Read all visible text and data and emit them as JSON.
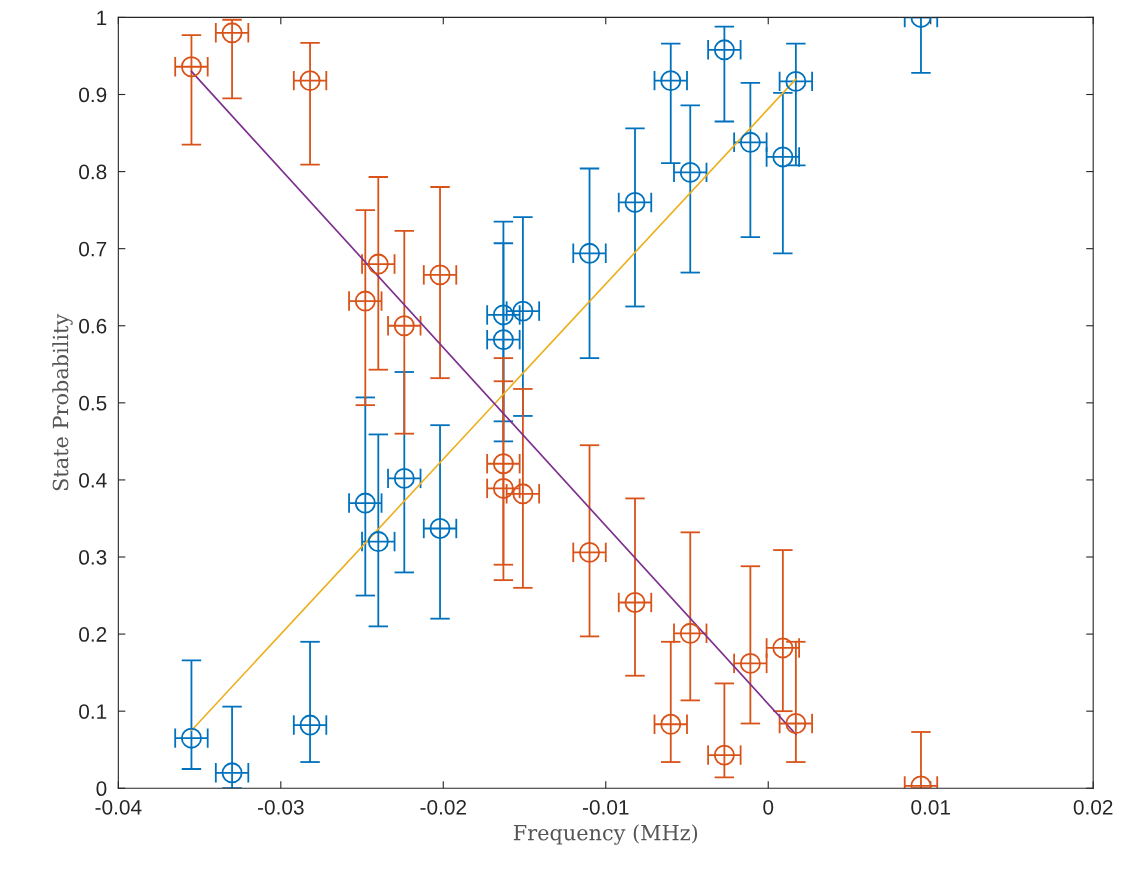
{
  "chart_data": {
    "type": "scatter",
    "xlabel": "Frequency (MHz)",
    "ylabel": "State Probability",
    "xlim": [
      -0.04,
      0.02
    ],
    "xticks": [
      -0.04,
      -0.03,
      -0.02,
      -0.01,
      0,
      0.01,
      0.02
    ],
    "ylim": [
      0,
      1
    ],
    "yticks": [
      0,
      0.1,
      0.2,
      0.3,
      0.4,
      0.5,
      0.6,
      0.7,
      0.8,
      0.9,
      1
    ],
    "grid": false,
    "legend": false,
    "marker": "circle",
    "series": [
      {
        "type": "scatter",
        "color": "#0072bd",
        "x": [
          -0.0355,
          -0.033,
          -0.0282,
          -0.0248,
          -0.024,
          -0.0224,
          -0.0202,
          -0.0163,
          -0.0163,
          -0.0151,
          -0.011,
          -0.0082,
          -0.006,
          -0.0048,
          -0.0027,
          -0.0011,
          0.0009,
          0.0017,
          0.0094
        ],
        "values": [
          0.065,
          0.02,
          0.082,
          0.37,
          0.32,
          0.402,
          0.337,
          0.582,
          0.614,
          0.619,
          0.694,
          0.76,
          0.918,
          0.799,
          0.958,
          0.838,
          0.819,
          0.917,
          1.0
        ],
        "errors": [
          [
            0.025,
            0.166
          ],
          [
            0.0,
            0.106
          ],
          [
            0.034,
            0.19
          ],
          [
            0.25,
            0.507
          ],
          [
            0.21,
            0.459
          ],
          [
            0.28,
            0.54
          ],
          [
            0.22,
            0.471
          ],
          [
            0.45,
            0.707
          ],
          [
            0.476,
            0.735
          ],
          [
            0.483,
            0.741
          ],
          [
            0.558,
            0.804
          ],
          [
            0.625,
            0.856
          ],
          [
            0.811,
            0.966
          ],
          [
            0.669,
            0.886
          ],
          [
            0.865,
            0.988
          ],
          [
            0.715,
            0.915
          ],
          [
            0.694,
            0.902
          ],
          [
            0.808,
            0.966
          ],
          [
            0.928,
            1.0
          ]
        ],
        "xerrors": [
          0.001,
          0.001,
          0.001,
          0.001,
          0.001,
          0.001,
          0.001,
          0.001,
          0.001,
          0.001,
          0.001,
          0.001,
          0.001,
          0.001,
          0.001,
          0.001,
          0.001,
          0.001,
          0.001
        ]
      },
      {
        "type": "scatter",
        "color": "#d95319",
        "x": [
          -0.0355,
          -0.033,
          -0.0282,
          -0.0248,
          -0.024,
          -0.0224,
          -0.0202,
          -0.0163,
          -0.0163,
          -0.0151,
          -0.011,
          -0.0082,
          -0.006,
          -0.0048,
          -0.0027,
          -0.0011,
          0.0009,
          0.0017,
          0.0094
        ],
        "values": [
          0.936,
          0.98,
          0.918,
          0.632,
          0.68,
          0.6,
          0.666,
          0.421,
          0.389,
          0.382,
          0.306,
          0.241,
          0.083,
          0.201,
          0.043,
          0.162,
          0.182,
          0.084,
          0.003
        ],
        "errors": [
          [
            0.835,
            0.977
          ],
          [
            0.895,
            0.997
          ],
          [
            0.809,
            0.967
          ],
          [
            0.497,
            0.75
          ],
          [
            0.543,
            0.793
          ],
          [
            0.46,
            0.723
          ],
          [
            0.532,
            0.78
          ],
          [
            0.29,
            0.558
          ],
          [
            0.27,
            0.528
          ],
          [
            0.26,
            0.518
          ],
          [
            0.197,
            0.445
          ],
          [
            0.146,
            0.376
          ],
          [
            0.034,
            0.19
          ],
          [
            0.114,
            0.332
          ],
          [
            0.014,
            0.136
          ],
          [
            0.084,
            0.288
          ],
          [
            0.1,
            0.309
          ],
          [
            0.034,
            0.19
          ],
          [
            0.0,
            0.073
          ]
        ],
        "xerrors": [
          0.001,
          0.001,
          0.001,
          0.001,
          0.001,
          0.001,
          0.001,
          0.001,
          0.001,
          0.001,
          0.001,
          0.001,
          0.001,
          0.001,
          0.001,
          0.001,
          0.001,
          0.001,
          0.001
        ]
      },
      {
        "type": "line",
        "color": "#edb120",
        "x": [
          -0.0355,
          0.0017
        ],
        "values": [
          0.075,
          0.92
        ],
        "marker": "none",
        "line_style": "solid"
      },
      {
        "type": "line",
        "color": "#7e2f8e",
        "x": [
          -0.0355,
          0.0017
        ],
        "values": [
          0.93,
          0.07
        ],
        "marker": "none",
        "line_style": "solid"
      }
    ]
  }
}
